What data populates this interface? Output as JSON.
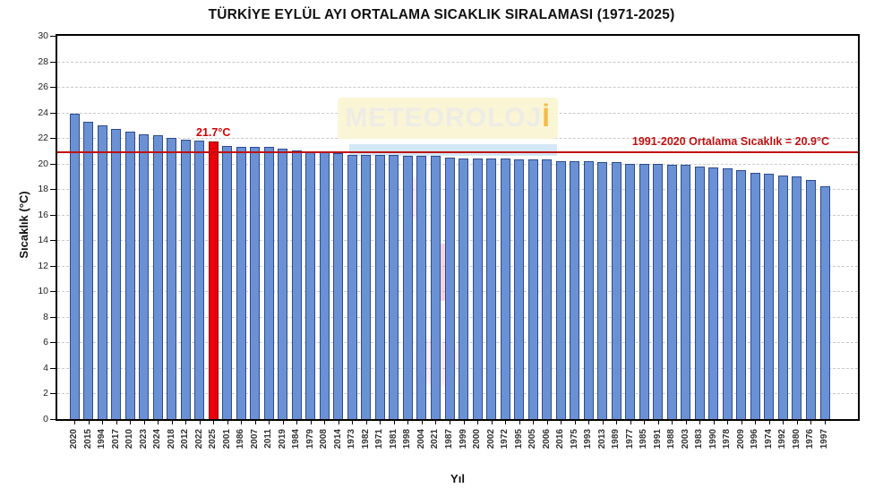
{
  "chart_data": {
    "type": "bar",
    "title": "TÜRKİYE EYLÜL AYI ORTALAMA SICAKLIK SIRALAMASI (1971-2025)",
    "xlabel": "Yıl",
    "ylabel": "Sıcaklık (°C)",
    "ylim": [
      0,
      30
    ],
    "ytick_step": 2,
    "grid": "horizontal-dashed",
    "sort": "descending by temperature",
    "categories": [
      "2020",
      "2015",
      "1994",
      "2017",
      "2010",
      "2023",
      "2024",
      "2018",
      "2012",
      "2022",
      "2025",
      "2001",
      "1986",
      "2007",
      "2011",
      "2019",
      "1984",
      "1979",
      "2008",
      "2014",
      "1973",
      "1982",
      "1971",
      "1981",
      "1998",
      "2004",
      "2021",
      "1987",
      "1999",
      "2000",
      "2002",
      "1972",
      "1995",
      "2005",
      "2006",
      "2016",
      "1975",
      "1993",
      "2013",
      "1989",
      "1977",
      "1985",
      "1991",
      "1988",
      "2003",
      "1983",
      "1990",
      "1978",
      "2009",
      "1996",
      "1974",
      "1992",
      "1980",
      "1976",
      "1997"
    ],
    "values": [
      23.9,
      23.3,
      23.0,
      22.7,
      22.5,
      22.3,
      22.2,
      22.0,
      21.9,
      21.8,
      21.7,
      21.4,
      21.3,
      21.3,
      21.3,
      21.2,
      21.0,
      20.9,
      20.9,
      20.8,
      20.7,
      20.7,
      20.7,
      20.7,
      20.6,
      20.6,
      20.6,
      20.5,
      20.4,
      20.4,
      20.4,
      20.4,
      20.3,
      20.3,
      20.3,
      20.2,
      20.2,
      20.2,
      20.1,
      20.1,
      20.0,
      20.0,
      20.0,
      19.9,
      19.9,
      19.8,
      19.7,
      19.6,
      19.5,
      19.3,
      19.2,
      19.1,
      19.0,
      18.7,
      18.2
    ],
    "highlight_category": "2025",
    "highlight_value": 21.7,
    "highlight_label": "21.7°C",
    "reference_line": {
      "value": 20.9,
      "label": "1991-2020 Ortalama Sıcaklık = 20.9°C"
    }
  },
  "watermark": {
    "text_main": "METEOROLOJ",
    "text_accent": "İ"
  },
  "colors": {
    "bar": "#6b91d5",
    "bar_border": "#2d4b8e",
    "bar_highlight": "#e8000b",
    "bar_highlight_border": "#8f0007",
    "reference_line": "#c01010",
    "reference_text": "#c01010",
    "highlight_text": "#d50000",
    "watermark_bg": "#faf5d2",
    "watermark_text": "#ecebe3",
    "watermark_accent": "#f2b63c",
    "watermark_strip": "#cde4f6",
    "watermark_blob": "#ef8fa6"
  }
}
